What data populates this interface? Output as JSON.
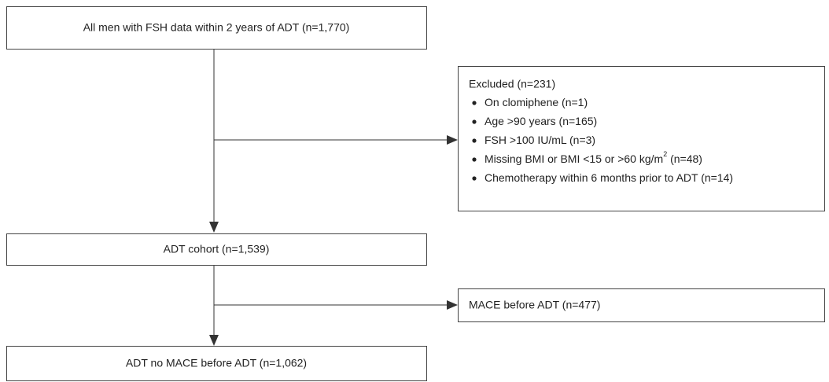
{
  "nodes": [
    {
      "label": "All men with FSH data within 2 years of ADT (n=1,770)"
    },
    {
      "label": "ADT cohort (n=1,539)"
    },
    {
      "label": "ADT no MACE before ADT (n=1,062)"
    }
  ],
  "excluded": {
    "title": "Excluded (n=231)",
    "items": [
      {
        "text": "On clomiphene (n=1)"
      },
      {
        "text": "Age >90 years (n=165)"
      },
      {
        "text": "FSH >100 IU/mL (n=3)"
      },
      {
        "text": "Missing BMI or BMI <15 or >60 kg/m",
        "sup": "2",
        "after": " (n=48)"
      },
      {
        "text": "Chemotherapy within 6 months prior to ADT (n=14)"
      }
    ]
  },
  "side": {
    "label": "MACE before ADT (n=477)"
  }
}
